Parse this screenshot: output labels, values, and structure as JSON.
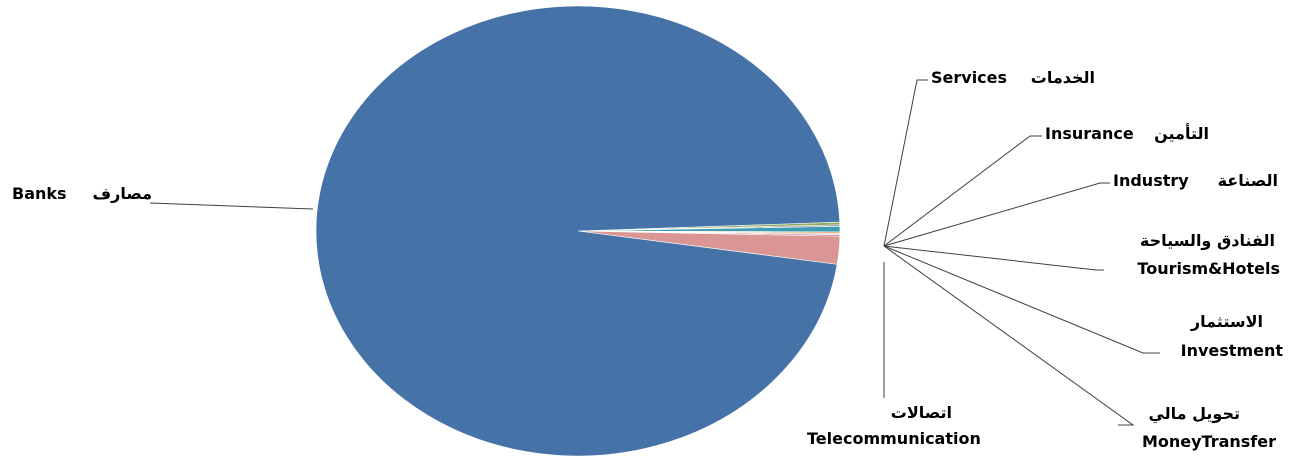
{
  "chart_data": {
    "type": "pie",
    "title": "",
    "slices": [
      {
        "label_en": "Banks",
        "label_ar": "مصارف",
        "value": 97.0,
        "color": "#4572A7"
      },
      {
        "label_en": "Services",
        "label_ar": "الخدمات",
        "value": 0.2,
        "color": "#8FAE5C"
      },
      {
        "label_en": "Insurance",
        "label_ar": "التأمين",
        "value": 0.1,
        "color": "#7E63A0"
      },
      {
        "label_en": "Industry",
        "label_ar": "الصناعة",
        "value": 0.4,
        "color": "#3D9DB0"
      },
      {
        "label_en": "Tourism&Hotels",
        "label_ar": "الفنادق والسياحة",
        "value": 0.1,
        "color": "#F09A4B"
      },
      {
        "label_en": "Investment",
        "label_ar": "الاستثمار",
        "value": 0.1,
        "color": "#A9C3E0"
      },
      {
        "label_en": "MoneyTransfer",
        "label_ar": "تحويل مالي",
        "value": 0.1,
        "color": "#C0504D"
      },
      {
        "label_en": "Telecommunication",
        "label_ar": "اتصالات",
        "value": 2.0,
        "color": "#D99694"
      }
    ]
  }
}
